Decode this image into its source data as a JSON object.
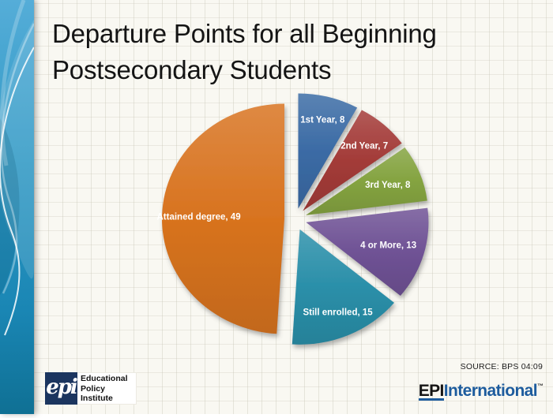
{
  "slide": {
    "title_line1": "Departure Points for all Beginning",
    "title_line2": "Postsecondary Students"
  },
  "chart_data": {
    "type": "pie",
    "title": "Departure Points for all Beginning Postsecondary Students",
    "total": 100,
    "start_angle_deg": 0,
    "direction": "clockwise",
    "exploded": true,
    "label_format": "{label}, {value}",
    "slices": [
      {
        "label": "1st Year",
        "value": 8,
        "color": "#3B6BA5"
      },
      {
        "label": "2nd Year",
        "value": 7,
        "color": "#A33B38"
      },
      {
        "label": "3rd Year",
        "value": 8,
        "color": "#84A340"
      },
      {
        "label": "4 or More",
        "value": 13,
        "color": "#6F5295"
      },
      {
        "label": "Still enrolled",
        "value": 15,
        "color": "#2A8FA9"
      },
      {
        "label": "Attained degree",
        "value": 49,
        "color": "#D8731F"
      }
    ]
  },
  "footer": {
    "source": "SOURCE: BPS 04:09",
    "epi_logo": {
      "script": "epi",
      "lines": [
        "Educational",
        "Policy",
        "Institute"
      ],
      "square_color": "#1B355F"
    },
    "epi_international": {
      "black_part": "EPI",
      "blue_part": "International",
      "trademark": "™",
      "blue_color": "#1D5C9E"
    }
  },
  "theme": {
    "sidebar_top_color": "#52ABD6",
    "sidebar_bottom_color": "#0F7094",
    "background_color": "#F9F8F2"
  }
}
